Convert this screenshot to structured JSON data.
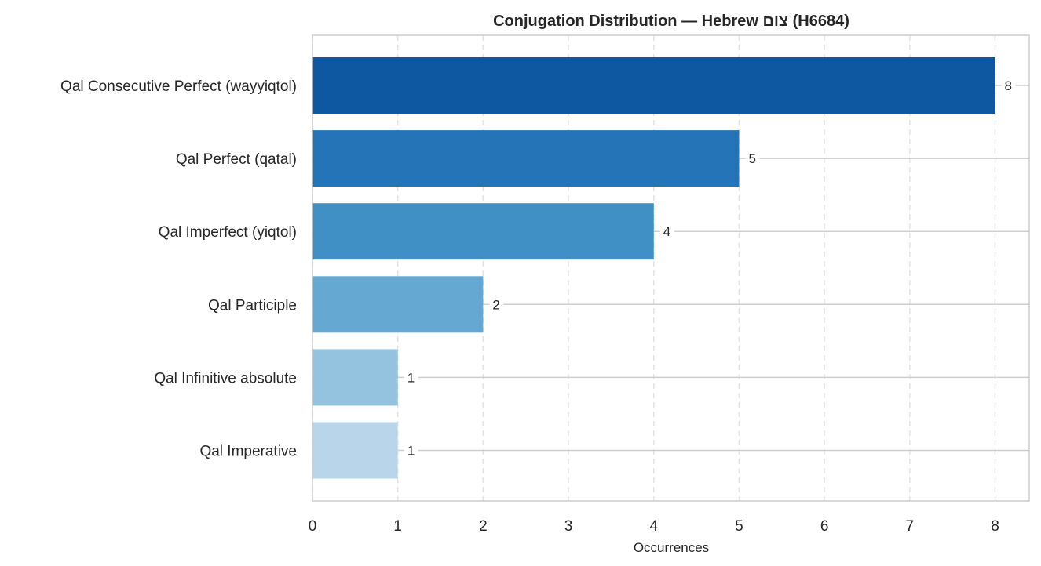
{
  "chart_data": {
    "type": "bar",
    "orientation": "horizontal",
    "title": "Conjugation Distribution — Hebrew צום (H6684)",
    "xlabel": "Occurrences",
    "ylabel": "",
    "categories": [
      "Qal Consecutive Perfect (wayyiqtol)",
      "Qal Perfect (qatal)",
      "Qal Imperfect (yiqtol)",
      "Qal Participle",
      "Qal Infinitive absolute",
      "Qal Imperative"
    ],
    "values": [
      8,
      5,
      4,
      2,
      1,
      1
    ],
    "value_labels": [
      "8",
      "5",
      "4",
      "2",
      "1",
      "1"
    ],
    "colors": [
      "#0d58a1",
      "#2474b7",
      "#4090c5",
      "#65a9d3",
      "#93c3df",
      "#b8d5ea"
    ],
    "xlim": [
      0,
      8.4
    ],
    "xticks": [
      "0",
      "1",
      "2",
      "3",
      "4",
      "5",
      "6",
      "7",
      "8"
    ],
    "grid": "x-dashed",
    "legend": "none"
  }
}
